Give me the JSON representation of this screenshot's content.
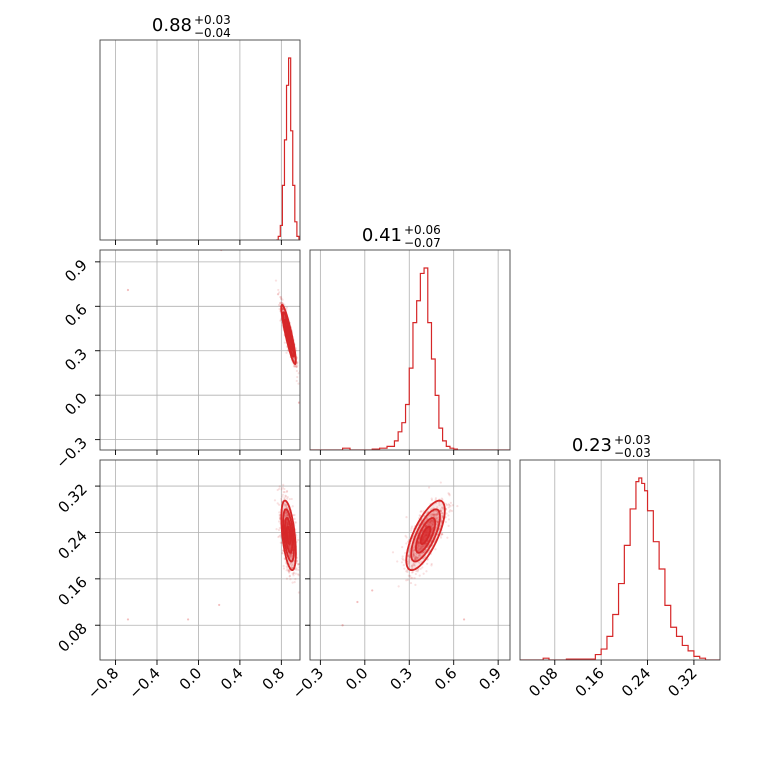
{
  "chart_data": {
    "type": "corner",
    "color": "#d62728",
    "parameters": [
      {
        "title_value": "0.88",
        "title_plus": "+0.03",
        "title_minus": "−0.04",
        "range": [
          -0.95,
          0.98
        ],
        "ticks": [
          -0.8,
          -0.4,
          0.0,
          0.4,
          0.8
        ],
        "tick_labels": [
          "−0.8",
          "−0.4",
          "0.0",
          "0.4",
          "0.8"
        ]
      },
      {
        "title_value": "0.41",
        "title_plus": "+0.06",
        "title_minus": "−0.07",
        "range": [
          -0.37,
          0.98
        ],
        "ticks": [
          -0.3,
          0.0,
          0.3,
          0.6,
          0.9
        ],
        "tick_labels": [
          "−0.3",
          "0.0",
          "0.3",
          "0.6",
          "0.9"
        ]
      },
      {
        "title_value": "0.23",
        "title_plus": "+0.03",
        "title_minus": "−0.03",
        "range": [
          0.02,
          0.365
        ],
        "ticks": [
          0.08,
          0.16,
          0.24,
          0.32
        ],
        "tick_labels": [
          "0.08",
          "0.16",
          "0.24",
          "0.32"
        ]
      }
    ],
    "histograms": [
      {
        "parameter": 0,
        "bins": [
          0.75,
          0.77,
          0.79,
          0.81,
          0.83,
          0.85,
          0.87,
          0.89,
          0.91,
          0.93,
          0.95,
          0.97
        ],
        "counts": [
          0,
          0.02,
          0.08,
          0.3,
          0.55,
          0.85,
          1.0,
          0.6,
          0.3,
          0.1,
          0.02
        ]
      },
      {
        "parameter": 1,
        "bins": [
          -0.37,
          -0.15,
          -0.1,
          0.05,
          0.1,
          0.15,
          0.2,
          0.225,
          0.25,
          0.275,
          0.3,
          0.325,
          0.35,
          0.375,
          0.4,
          0.425,
          0.45,
          0.475,
          0.5,
          0.525,
          0.55,
          0.575,
          0.6,
          0.625,
          0.98
        ],
        "counts": [
          0,
          0.01,
          0,
          0.005,
          0.01,
          0.02,
          0.05,
          0.1,
          0.15,
          0.25,
          0.45,
          0.7,
          0.82,
          0.97,
          1.0,
          0.7,
          0.5,
          0.3,
          0.12,
          0.05,
          0.02,
          0.01,
          0.005,
          0
        ]
      },
      {
        "parameter": 2,
        "bins": [
          0.02,
          0.06,
          0.07,
          0.1,
          0.15,
          0.16,
          0.17,
          0.18,
          0.19,
          0.2,
          0.21,
          0.22,
          0.225,
          0.23,
          0.235,
          0.24,
          0.25,
          0.26,
          0.27,
          0.28,
          0.29,
          0.3,
          0.31,
          0.32,
          0.33,
          0.34,
          0.365
        ],
        "counts": [
          0,
          0.01,
          0,
          0.005,
          0.03,
          0.06,
          0.13,
          0.25,
          0.42,
          0.63,
          0.83,
          0.98,
          1.0,
          0.97,
          0.93,
          0.82,
          0.65,
          0.5,
          0.3,
          0.18,
          0.13,
          0.08,
          0.05,
          0.02,
          0.01,
          0
        ]
      }
    ],
    "pairs": [
      {
        "x": 0,
        "y": 1,
        "center": [
          0.87,
          0.41
        ],
        "sigma": [
          0.035,
          0.1
        ],
        "rho": -0.9,
        "outliers": [
          [
            -0.68,
            0.71
          ],
          [
            0.22,
            0.98
          ],
          [
            0.97,
            -0.05
          ]
        ]
      },
      {
        "x": 0,
        "y": 2,
        "center": [
          0.87,
          0.235
        ],
        "sigma": [
          0.035,
          0.03
        ],
        "rho": -0.5,
        "outliers": [
          [
            -0.68,
            0.09
          ],
          [
            -0.1,
            0.09
          ],
          [
            0.2,
            0.115
          ]
        ]
      },
      {
        "x": 1,
        "y": 2,
        "center": [
          0.41,
          0.235
        ],
        "sigma": [
          0.065,
          0.03
        ],
        "rho": 0.72,
        "outliers": [
          [
            -0.15,
            0.08
          ],
          [
            -0.05,
            0.12
          ],
          [
            0.67,
            0.09
          ],
          [
            0.05,
            0.14
          ]
        ]
      }
    ],
    "contour_levels_sigma": [
      0.5,
      1.0,
      1.5,
      2.0
    ],
    "grid": true
  }
}
